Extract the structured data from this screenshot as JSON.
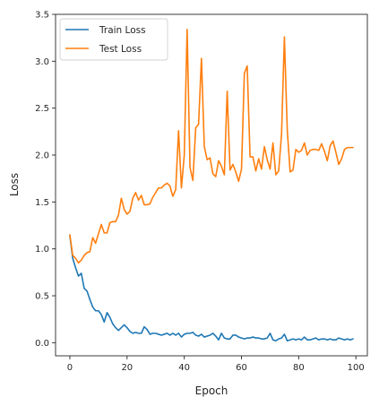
{
  "chart_data": {
    "type": "line",
    "title": "",
    "xlabel": "Epoch",
    "ylabel": "Loss",
    "xlim": [
      -5,
      104
    ],
    "ylim": [
      -0.14,
      3.5
    ],
    "xticks": [
      0,
      20,
      40,
      60,
      80,
      100
    ],
    "yticks": [
      0.0,
      0.5,
      1.0,
      1.5,
      2.0,
      2.5,
      3.0,
      3.5
    ],
    "xtick_labels": [
      "0",
      "20",
      "40",
      "60",
      "80",
      "100"
    ],
    "ytick_labels": [
      "0.0",
      "0.5",
      "1.0",
      "1.5",
      "2.0",
      "2.5",
      "3.0",
      "3.5"
    ],
    "grid": false,
    "legend_position": "top-left",
    "series": [
      {
        "name": "Train Loss",
        "color": "#1f77b4",
        "x": [
          0,
          1,
          2,
          3,
          4,
          5,
          6,
          7,
          8,
          9,
          10,
          11,
          12,
          13,
          14,
          15,
          16,
          17,
          18,
          19,
          20,
          21,
          22,
          23,
          24,
          25,
          26,
          27,
          28,
          29,
          30,
          31,
          32,
          33,
          34,
          35,
          36,
          37,
          38,
          39,
          40,
          41,
          42,
          43,
          44,
          45,
          46,
          47,
          48,
          49,
          50,
          51,
          52,
          53,
          54,
          55,
          56,
          57,
          58,
          59,
          60,
          61,
          62,
          63,
          64,
          65,
          66,
          67,
          68,
          69,
          70,
          71,
          72,
          73,
          74,
          75,
          76,
          77,
          78,
          79,
          80,
          81,
          82,
          83,
          84,
          85,
          86,
          87,
          88,
          89,
          90,
          91,
          92,
          93,
          94,
          95,
          96,
          97,
          98,
          99
        ],
        "values": [
          1.14,
          0.9,
          0.8,
          0.71,
          0.74,
          0.58,
          0.55,
          0.46,
          0.38,
          0.34,
          0.34,
          0.3,
          0.22,
          0.32,
          0.27,
          0.2,
          0.16,
          0.13,
          0.16,
          0.19,
          0.16,
          0.12,
          0.1,
          0.11,
          0.1,
          0.1,
          0.17,
          0.14,
          0.09,
          0.1,
          0.1,
          0.09,
          0.08,
          0.09,
          0.1,
          0.08,
          0.1,
          0.08,
          0.1,
          0.06,
          0.09,
          0.1,
          0.1,
          0.11,
          0.08,
          0.07,
          0.09,
          0.06,
          0.07,
          0.08,
          0.1,
          0.07,
          0.03,
          0.1,
          0.05,
          0.04,
          0.04,
          0.08,
          0.08,
          0.06,
          0.05,
          0.04,
          0.05,
          0.05,
          0.06,
          0.05,
          0.05,
          0.04,
          0.04,
          0.05,
          0.1,
          0.03,
          0.02,
          0.04,
          0.05,
          0.09,
          0.02,
          0.03,
          0.04,
          0.03,
          0.04,
          0.03,
          0.06,
          0.03,
          0.03,
          0.04,
          0.05,
          0.03,
          0.04,
          0.04,
          0.03,
          0.04,
          0.03,
          0.03,
          0.05,
          0.04,
          0.03,
          0.04,
          0.03,
          0.04
        ]
      },
      {
        "name": "Test Loss",
        "color": "#ff7f0e",
        "x": [
          0,
          1,
          2,
          3,
          4,
          5,
          6,
          7,
          8,
          9,
          10,
          11,
          12,
          13,
          14,
          15,
          16,
          17,
          18,
          19,
          20,
          21,
          22,
          23,
          24,
          25,
          26,
          27,
          28,
          29,
          30,
          31,
          32,
          33,
          34,
          35,
          36,
          37,
          38,
          39,
          40,
          41,
          42,
          43,
          44,
          45,
          46,
          47,
          48,
          49,
          50,
          51,
          52,
          53,
          54,
          55,
          56,
          57,
          58,
          59,
          60,
          61,
          62,
          63,
          64,
          65,
          66,
          67,
          68,
          69,
          70,
          71,
          72,
          73,
          74,
          75,
          76,
          77,
          78,
          79,
          80,
          81,
          82,
          83,
          84,
          85,
          86,
          87,
          88,
          89,
          90,
          91,
          92,
          93,
          94,
          95,
          96,
          97,
          98,
          99
        ],
        "values": [
          1.15,
          0.93,
          0.9,
          0.85,
          0.88,
          0.93,
          0.96,
          0.97,
          1.12,
          1.06,
          1.16,
          1.26,
          1.17,
          1.17,
          1.28,
          1.29,
          1.29,
          1.36,
          1.54,
          1.42,
          1.37,
          1.4,
          1.54,
          1.6,
          1.52,
          1.57,
          1.47,
          1.47,
          1.48,
          1.55,
          1.6,
          1.65,
          1.65,
          1.68,
          1.7,
          1.67,
          1.56,
          1.63,
          2.26,
          1.65,
          2.0,
          3.34,
          1.87,
          1.73,
          2.29,
          2.33,
          3.03,
          2.09,
          1.95,
          1.97,
          1.8,
          1.77,
          1.94,
          1.88,
          1.79,
          2.68,
          1.84,
          1.9,
          1.82,
          1.72,
          1.85,
          2.87,
          2.95,
          1.98,
          1.98,
          1.83,
          1.96,
          1.85,
          2.09,
          1.95,
          1.85,
          2.13,
          1.79,
          1.83,
          2.22,
          3.26,
          2.27,
          1.82,
          1.84,
          2.06,
          2.03,
          2.05,
          2.13,
          2.0,
          2.05,
          2.06,
          2.06,
          2.05,
          2.12,
          2.04,
          1.94,
          2.1,
          2.15,
          2.03,
          1.9,
          1.96,
          2.06,
          2.08,
          2.08,
          2.08
        ]
      }
    ]
  }
}
